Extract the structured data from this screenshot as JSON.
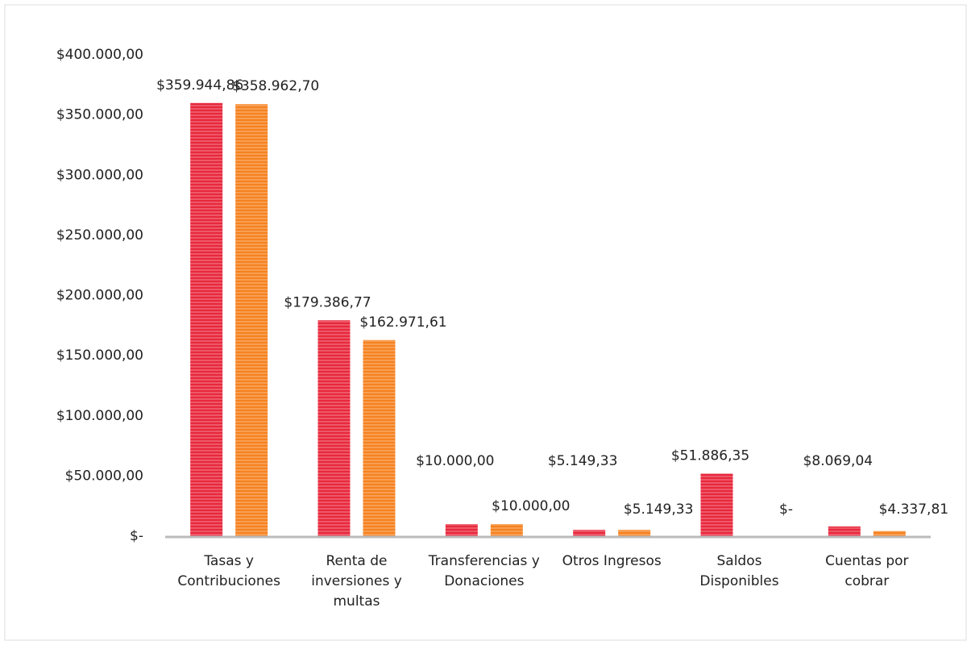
{
  "chart_data": {
    "type": "bar",
    "categories": [
      "Tasas y Contribuciones",
      "Renta de inversiones y multas",
      "Transferencias y Donaciones",
      "Otros Ingresos",
      "Saldos Disponibles",
      "Cuentas por cobrar"
    ],
    "series": [
      {
        "color": "#e8283c",
        "values": [
          359944.86,
          179386.77,
          10000,
          5149.33,
          51886.35,
          8069.04
        ],
        "value_labels": [
          "$359.944,86",
          "$179.386,77",
          "$10.000,00",
          "$5.149,33",
          "$51.886,35",
          "$8.069,04"
        ]
      },
      {
        "color": "#f58220",
        "values": [
          358962.7,
          162971.61,
          10000,
          5149.33,
          0,
          4337.81
        ],
        "value_labels": [
          "$358.962,70",
          "$162.971,61",
          "$10.000,00",
          "$5.149,33",
          "$-",
          "$4.337,81"
        ]
      }
    ],
    "ylim": [
      0,
      400000
    ],
    "yticks": [
      {
        "value": 0,
        "label": "$-"
      },
      {
        "value": 50000,
        "label": "$50.000,00"
      },
      {
        "value": 100000,
        "label": "$100.000,00"
      },
      {
        "value": 150000,
        "label": "$150.000,00"
      },
      {
        "value": 200000,
        "label": "$200.000,00"
      },
      {
        "value": 250000,
        "label": "$250.000,00"
      },
      {
        "value": 300000,
        "label": "$300.000,00"
      },
      {
        "value": 350000,
        "label": "$350.000,00"
      },
      {
        "value": 400000,
        "label": "$400.000,00"
      }
    ],
    "grid": false
  }
}
